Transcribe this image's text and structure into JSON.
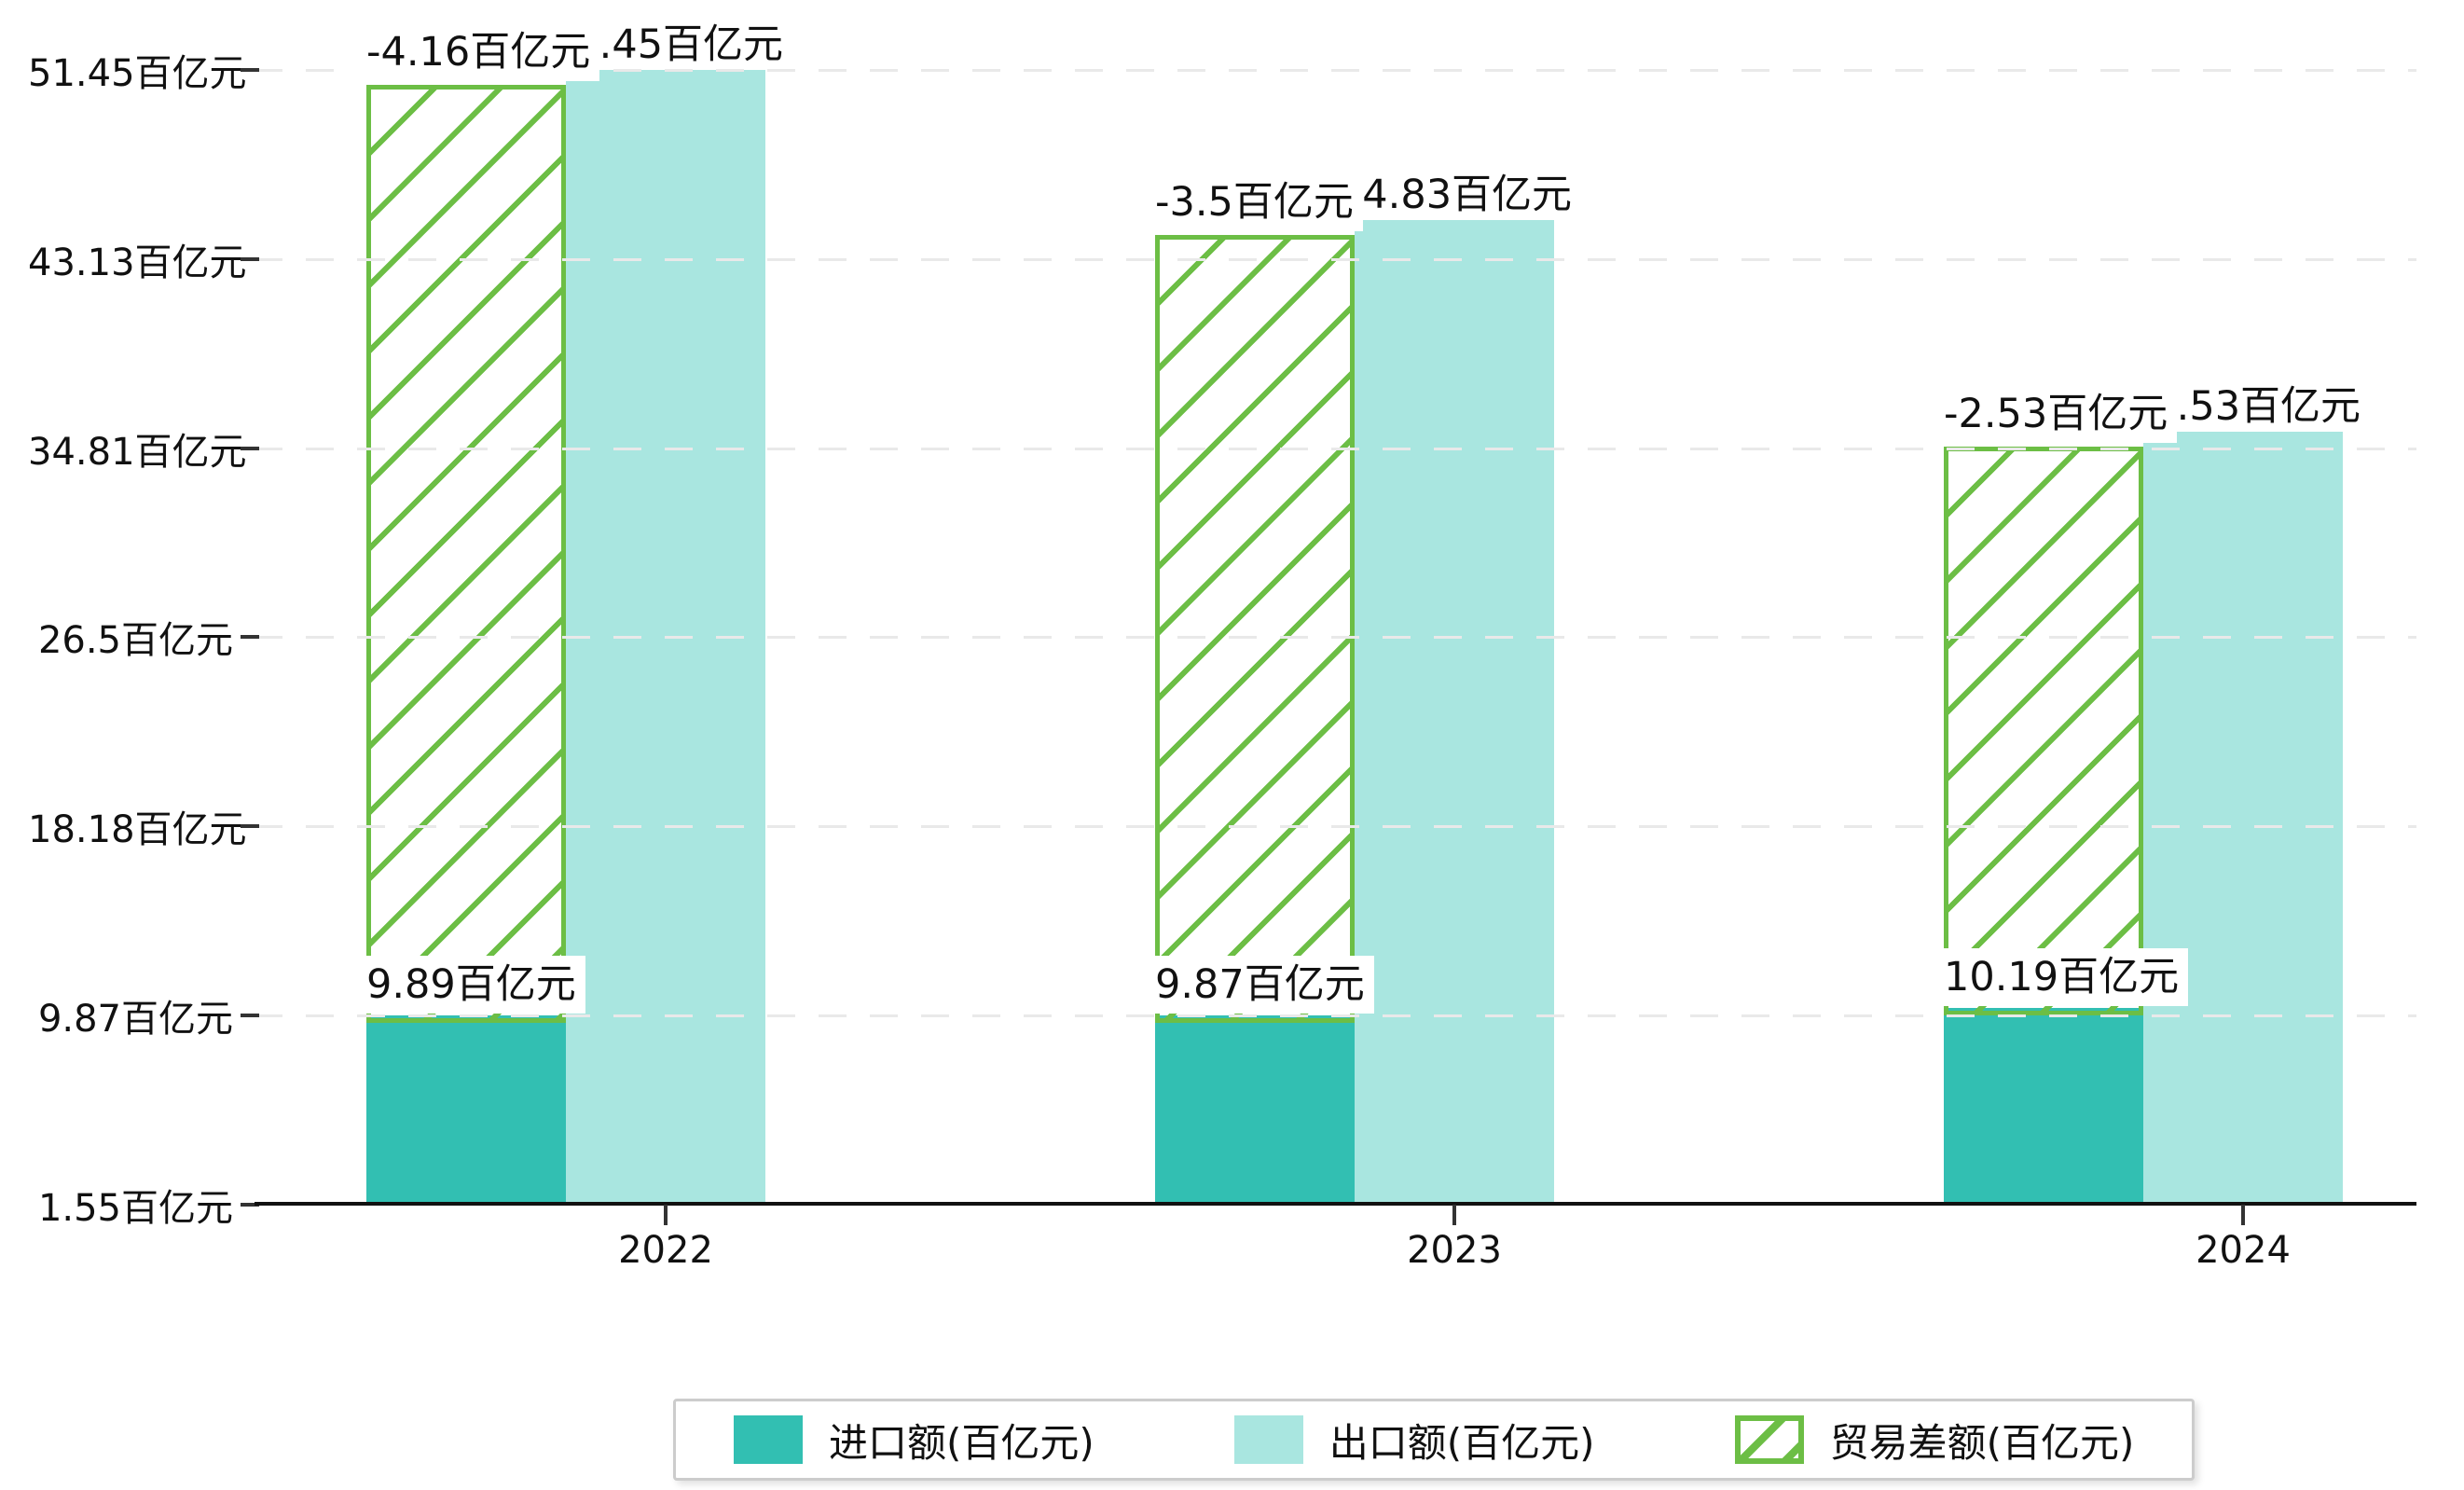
{
  "chart_data": {
    "type": "bar",
    "categories": [
      "2022",
      "2023",
      "2024"
    ],
    "series": [
      {
        "name": "进口额(百亿元)",
        "color": "#32BFB2",
        "style": "solid",
        "values": [
          9.89,
          9.87,
          10.19
        ],
        "data_labels": [
          "9.89百亿元",
          "9.87百亿元",
          "10.19百亿元"
        ]
      },
      {
        "name": "出口额(百亿元)",
        "color": "#A9E6E0",
        "style": "solid",
        "values": [
          51.45,
          44.83,
          35.53
        ],
        "data_labels": [
          "51.45百亿元",
          "44.83百亿元",
          "35.53百亿元"
        ]
      },
      {
        "name": "贸易差额(百亿元)",
        "color": "#6CBE45",
        "style": "hatched",
        "values": [
          -4.16,
          -3.5,
          -2.53
        ],
        "data_labels": [
          "-4.16百亿元",
          "-3.5百亿元",
          "-2.53百亿元"
        ]
      }
    ],
    "y_axis": {
      "unit": "百亿元",
      "min": 1.55,
      "max": 51.45,
      "ticks": [
        1.55,
        9.87,
        18.18,
        26.5,
        34.81,
        43.13,
        51.45
      ],
      "tick_labels": [
        "1.55百亿元",
        "9.87百亿元",
        "18.18百亿元",
        "26.5百亿元",
        "34.81百亿元",
        "43.13百亿元",
        "51.45百亿元"
      ]
    },
    "x_axis": {
      "tick_labels": [
        "2022",
        "2023",
        "2024"
      ]
    },
    "grid": "horizontal dashed",
    "legend_position": "bottom center"
  },
  "colors": {
    "import_bar": "#32BFB2",
    "export_bar": "#A9E6E0",
    "balance_green": "#6CBE45",
    "gridline": "#e9e9e9",
    "axis": "#111111",
    "label_background": "#ffffff",
    "text": "#111111"
  }
}
